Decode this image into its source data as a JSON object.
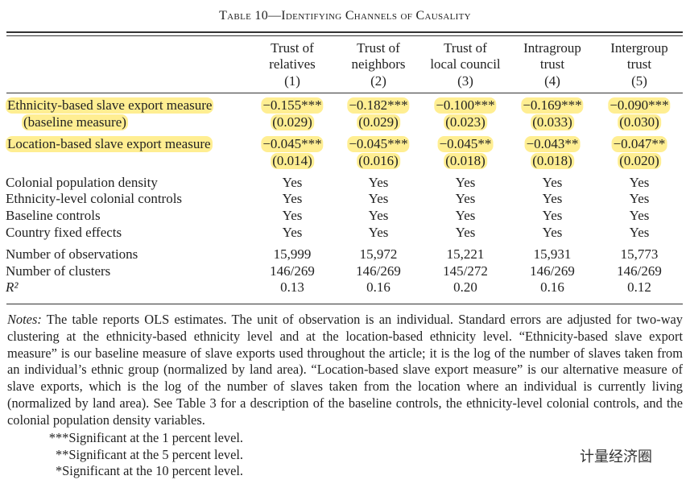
{
  "title": "Table 10—Identifying Channels of Causality",
  "columns": [
    {
      "header": [
        "Trust of",
        "relatives"
      ],
      "number": "(1)"
    },
    {
      "header": [
        "Trust of",
        "neighbors"
      ],
      "number": "(2)"
    },
    {
      "header": [
        "Trust of",
        "local council"
      ],
      "number": "(3)"
    },
    {
      "header": [
        "Intragroup",
        "trust"
      ],
      "number": "(4)"
    },
    {
      "header": [
        "Intergroup",
        "trust"
      ],
      "number": "(5)"
    }
  ],
  "rows": [
    {
      "label": "Ethnicity-based slave export measure",
      "cells": [
        "−0.155***",
        "−0.182***",
        "−0.100***",
        "−0.169***",
        "−0.090***"
      ],
      "highlight": true
    },
    {
      "label": "(baseline measure)",
      "cells": [
        "(0.029)",
        "(0.029)",
        "(0.023)",
        "(0.033)",
        "(0.030)"
      ],
      "highlight": true
    },
    {
      "label": "Location-based slave export measure",
      "cells": [
        "−0.045***",
        "−0.045***",
        "−0.045**",
        "−0.043**",
        "−0.047**"
      ],
      "highlight": true
    },
    {
      "cells": [
        "(0.014)",
        "(0.016)",
        "(0.018)",
        "(0.018)",
        "(0.020)"
      ],
      "highlight": true
    },
    {
      "label": "Colonial population density",
      "cells": [
        "Yes",
        "Yes",
        "Yes",
        "Yes",
        "Yes"
      ]
    },
    {
      "label": "Ethnicity-level colonial controls",
      "cells": [
        "Yes",
        "Yes",
        "Yes",
        "Yes",
        "Yes"
      ]
    },
    {
      "label": "Baseline controls",
      "cells": [
        "Yes",
        "Yes",
        "Yes",
        "Yes",
        "Yes"
      ]
    },
    {
      "label": "Country fixed effects",
      "cells": [
        "Yes",
        "Yes",
        "Yes",
        "Yes",
        "Yes"
      ]
    },
    {
      "label": "Number of observations",
      "cells": [
        "15,999",
        "15,972",
        "15,221",
        "15,931",
        "15,773"
      ]
    },
    {
      "label": "Number of clusters",
      "cells": [
        "146/269",
        "146/269",
        "145/272",
        "146/269",
        "146/269"
      ]
    },
    {
      "label": "R²",
      "cells": [
        "0.13",
        "0.16",
        "0.20",
        "0.16",
        "0.12"
      ],
      "italic": true
    }
  ],
  "notes": {
    "label": "Notes:",
    "text": "The table reports OLS estimates. The unit of observation is an individual. Standard errors are adjusted for two-way clustering at the ethnicity-based ethnicity level and at the location-based ethnicity level. “Ethnicity-based slave export measure” is our baseline measure of slave exports used throughout the article; it is the log of the number of slaves taken from an individual’s ethnic group (normalized by land area). “Location-based slave export measure” is our alternative measure of slave exports, which is the log of the number of slaves taken from the location where an individual is currently living (normalized by land area). See Table 3 for a description of the baseline controls, the ethnicity-level colonial controls, and the colonial population density variables."
  },
  "footnotes": [
    "***Significant at the 1 percent level.",
    "**Significant at the 5 percent level.",
    "*Significant at the 10 percent level."
  ],
  "watermark": "计量经济圈"
}
